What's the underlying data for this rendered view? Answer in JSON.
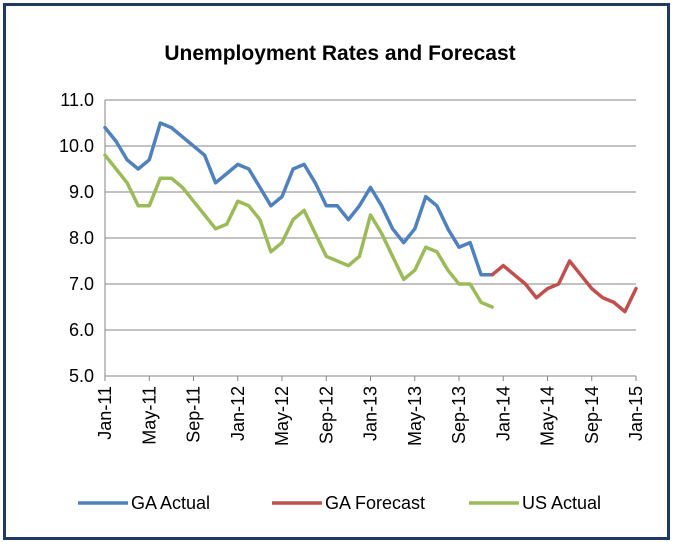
{
  "chart_data": {
    "type": "line",
    "title": "Unemployment Rates and Forecast",
    "xlabel": "",
    "ylabel": "",
    "ylim": [
      5.0,
      11.0
    ],
    "yticks": [
      "5.0",
      "6.0",
      "7.0",
      "8.0",
      "9.0",
      "10.0",
      "11.0"
    ],
    "xticks": [
      "Jan-11",
      "May-11",
      "Sep-11",
      "Jan-12",
      "May-12",
      "Sep-12",
      "Jan-13",
      "May-13",
      "Sep-13",
      "Jan-14",
      "May-14",
      "Sep-14",
      "Jan-15"
    ],
    "x_start": "Jan-11",
    "x_count": 49,
    "grid": true,
    "legend_position": "bottom",
    "series": [
      {
        "name": "GA Actual",
        "color": "#4f81bd",
        "start_index": 0,
        "values": [
          10.4,
          10.1,
          9.7,
          9.5,
          9.7,
          10.5,
          10.4,
          10.2,
          10.0,
          9.8,
          9.2,
          9.4,
          9.6,
          9.5,
          9.1,
          8.7,
          8.9,
          9.5,
          9.6,
          9.2,
          8.7,
          8.7,
          8.4,
          8.7,
          9.1,
          8.7,
          8.2,
          7.9,
          8.2,
          8.9,
          8.7,
          8.2,
          7.8,
          7.9,
          7.2,
          7.2
        ]
      },
      {
        "name": "GA Forecast",
        "color": "#c0504d",
        "start_index": 35,
        "values": [
          7.2,
          7.4,
          7.2,
          7.0,
          6.7,
          6.9,
          7.0,
          7.5,
          7.2,
          6.9,
          6.7,
          6.6,
          6.4,
          6.9
        ]
      },
      {
        "name": "US Actual",
        "color": "#9bbb59",
        "start_index": 0,
        "values": [
          9.8,
          9.5,
          9.2,
          8.7,
          8.7,
          9.3,
          9.3,
          9.1,
          8.8,
          8.5,
          8.2,
          8.3,
          8.8,
          8.7,
          8.4,
          7.7,
          7.9,
          8.4,
          8.6,
          8.1,
          7.6,
          7.5,
          7.4,
          7.6,
          8.5,
          8.1,
          7.6,
          7.1,
          7.3,
          7.8,
          7.7,
          7.3,
          7.0,
          7.0,
          6.6,
          6.5
        ]
      }
    ]
  }
}
